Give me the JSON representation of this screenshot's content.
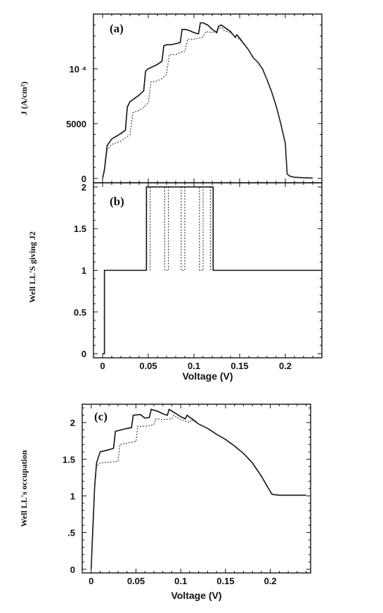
{
  "chart_data": [
    {
      "panel_label": "(a)",
      "type": "line",
      "title": "",
      "xlabel": "",
      "ylabel": "J (A/cm²)",
      "xlim": [
        -0.01,
        0.24
      ],
      "ylim": [
        -400,
        15000
      ],
      "x_ticks": [
        0,
        0.05,
        0.1,
        0.15,
        0.2
      ],
      "x_tick_labels": [
        "",
        "",
        "",
        "",
        ""
      ],
      "y_ticks": [
        0,
        5000,
        10000
      ],
      "y_tick_labels": [
        "0",
        "5000",
        "10 ⁴"
      ],
      "series": [
        {
          "style": "solid",
          "x": [
            0,
            0.002,
            0.005,
            0.01,
            0.02,
            0.025,
            0.027,
            0.03,
            0.04,
            0.045,
            0.047,
            0.05,
            0.06,
            0.065,
            0.067,
            0.07,
            0.075,
            0.08,
            0.085,
            0.087,
            0.09,
            0.095,
            0.1,
            0.105,
            0.107,
            0.11,
            0.115,
            0.12,
            0.125,
            0.127,
            0.13,
            0.135,
            0.14,
            0.145,
            0.147,
            0.15,
            0.16,
            0.165,
            0.17,
            0.175,
            0.18,
            0.185,
            0.19,
            0.195,
            0.2,
            0.202,
            0.205,
            0.21,
            0.22,
            0.23
          ],
          "y": [
            0,
            800,
            3000,
            3600,
            4100,
            4400,
            6500,
            7000,
            7600,
            8000,
            9800,
            10000,
            10400,
            10700,
            12100,
            12200,
            12200,
            12300,
            12400,
            13600,
            13600,
            13500,
            13300,
            13200,
            14200,
            14200,
            14000,
            13600,
            13300,
            13900,
            14000,
            13700,
            13400,
            12900,
            13100,
            12800,
            11700,
            11000,
            10600,
            10000,
            9000,
            7900,
            6600,
            5000,
            3200,
            400,
            200,
            100,
            60,
            30
          ]
        },
        {
          "style": "dotted",
          "x": [
            0,
            0.002,
            0.005,
            0.01,
            0.02,
            0.025,
            0.03,
            0.033,
            0.04,
            0.045,
            0.05,
            0.053,
            0.06,
            0.065,
            0.07,
            0.073,
            0.08,
            0.085,
            0.09,
            0.093,
            0.1,
            0.105,
            0.11,
            0.113,
            0.12,
            0.125,
            0.13,
            0.133,
            0.14,
            0.145,
            0.15,
            0.16,
            0.165,
            0.17,
            0.175,
            0.18,
            0.185,
            0.19,
            0.195,
            0.2,
            0.202,
            0.205,
            0.21,
            0.22,
            0.23
          ],
          "y": [
            0,
            600,
            2600,
            3100,
            3400,
            3700,
            4000,
            6000,
            6200,
            6500,
            6900,
            8800,
            8900,
            9100,
            9500,
            11300,
            11300,
            11500,
            11600,
            12700,
            12700,
            12800,
            12900,
            13400,
            13300,
            13500,
            13800,
            13500,
            13300,
            12900,
            12700,
            11700,
            11000,
            10600,
            10000,
            9000,
            7900,
            6600,
            5000,
            3200,
            400,
            200,
            100,
            60,
            30
          ]
        }
      ]
    },
    {
      "panel_label": "(b)",
      "type": "line",
      "title": "",
      "xlabel": "Voltage (V)",
      "ylabel": "Well LL'S giving J2",
      "xlim": [
        -0.01,
        0.24
      ],
      "ylim": [
        -0.05,
        2.05
      ],
      "x_ticks": [
        0,
        0.05,
        0.1,
        0.15,
        0.2
      ],
      "x_tick_labels": [
        "0",
        "0.05",
        "0.1",
        "0.15",
        "0.2"
      ],
      "y_ticks": [
        0,
        0.5,
        1,
        1.5,
        2
      ],
      "y_tick_labels": [
        "0",
        "0.5",
        "1",
        "1.5",
        "2"
      ],
      "series": [
        {
          "style": "solid",
          "x": [
            0,
            0.002,
            0.002,
            0.048,
            0.048,
            0.121,
            0.121,
            0.24
          ],
          "y": [
            0,
            0,
            1,
            1,
            2,
            2,
            1,
            1
          ]
        },
        {
          "style": "dotted",
          "x": [
            0.052,
            0.052,
            0.068,
            0.068,
            0.072,
            0.072,
            0.086,
            0.086,
            0.09,
            0.09,
            0.106,
            0.106,
            0.11,
            0.11,
            0.118,
            0.118
          ],
          "y": [
            1,
            2,
            2,
            1,
            1,
            2,
            2,
            1,
            1,
            2,
            2,
            1,
            1,
            2,
            2,
            1
          ]
        }
      ]
    },
    {
      "panel_label": "(c)",
      "type": "line",
      "title": "",
      "xlabel": "Voltage (V)",
      "ylabel": "Well LL's occupation",
      "xlim": [
        -0.01,
        0.245
      ],
      "ylim": [
        -0.05,
        2.25
      ],
      "x_ticks": [
        0,
        0.05,
        0.1,
        0.15,
        0.2
      ],
      "x_tick_labels": [
        "0",
        "0.05",
        "0.1",
        "0.15",
        "0.2"
      ],
      "y_ticks": [
        0,
        0.5,
        1,
        1.5,
        2
      ],
      "y_tick_labels": [
        "0",
        ".5",
        "1",
        "1.5",
        "2"
      ],
      "series": [
        {
          "style": "solid",
          "x": [
            0,
            0.002,
            0.004,
            0.006,
            0.01,
            0.02,
            0.025,
            0.027,
            0.04,
            0.045,
            0.047,
            0.055,
            0.06,
            0.065,
            0.067,
            0.075,
            0.08,
            0.085,
            0.087,
            0.095,
            0.1,
            0.105,
            0.107,
            0.115,
            0.12,
            0.125,
            0.13,
            0.135,
            0.14,
            0.15,
            0.16,
            0.17,
            0.18,
            0.19,
            0.198,
            0.202,
            0.21,
            0.22,
            0.24
          ],
          "y": [
            0,
            0.6,
            1.15,
            1.45,
            1.6,
            1.63,
            1.65,
            1.88,
            1.92,
            1.93,
            2.1,
            2.11,
            2.06,
            2.07,
            2.18,
            2.15,
            2.12,
            2.1,
            2.18,
            2.12,
            2.08,
            2.05,
            2.1,
            2.03,
            1.98,
            1.95,
            1.92,
            1.88,
            1.84,
            1.77,
            1.68,
            1.58,
            1.45,
            1.27,
            1.1,
            1.02,
            1.01,
            1.01,
            1.01
          ]
        },
        {
          "style": "dotted",
          "x": [
            0,
            0.002,
            0.004,
            0.006,
            0.01,
            0.02,
            0.03,
            0.032,
            0.04,
            0.05,
            0.052,
            0.06,
            0.07,
            0.072,
            0.08,
            0.09,
            0.092,
            0.1,
            0.11,
            0.112,
            0.12,
            0.125,
            0.13,
            0.135,
            0.14,
            0.15
          ],
          "y": [
            0,
            0.5,
            1.1,
            1.4,
            1.45,
            1.46,
            1.47,
            1.7,
            1.72,
            1.74,
            1.95,
            1.95,
            1.97,
            2.05,
            2.04,
            2.05,
            2.1,
            2.04,
            2.0,
            2.04,
            1.98,
            1.95,
            1.92,
            1.88,
            1.84,
            1.77
          ]
        }
      ]
    }
  ]
}
